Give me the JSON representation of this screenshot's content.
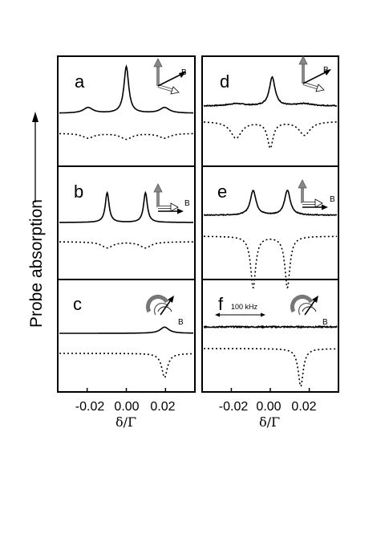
{
  "figure": {
    "y_label": "Probe absorption",
    "x_label": "δ/Γ",
    "x_ticks": [
      "-0.02",
      "0.00",
      "0.02"
    ],
    "scale_bar_label": "100 kHz",
    "field_label": "B"
  },
  "chart_data": [
    {
      "type": "line",
      "panel": "a",
      "column": "left",
      "xlim": [
        -0.035,
        0.035
      ],
      "series": [
        {
          "style": "solid",
          "peaks": [
            {
              "x": -0.02,
              "amp": 0.12,
              "w": 0.003
            },
            {
              "x": 0.0,
              "amp": 1.0,
              "w": 0.0015
            },
            {
              "x": 0.02,
              "amp": 0.12,
              "w": 0.003
            }
          ],
          "baseline": 0.0
        },
        {
          "style": "dotted",
          "peaks": [
            {
              "x": -0.02,
              "amp": -0.45,
              "w": 0.0035
            },
            {
              "x": 0.0,
              "amp": -0.55,
              "w": 0.0035
            },
            {
              "x": 0.02,
              "amp": -0.45,
              "w": 0.0035
            }
          ],
          "baseline": 0.0
        }
      ]
    },
    {
      "type": "line",
      "panel": "b",
      "column": "left",
      "xlim": [
        -0.035,
        0.035
      ],
      "series": [
        {
          "style": "solid",
          "peaks": [
            {
              "x": -0.01,
              "amp": 1.0,
              "w": 0.0012
            },
            {
              "x": 0.01,
              "amp": 1.0,
              "w": 0.0012
            }
          ],
          "baseline": 0.0
        },
        {
          "style": "dotted",
          "peaks": [
            {
              "x": -0.01,
              "amp": -0.5,
              "w": 0.0035
            },
            {
              "x": 0.01,
              "amp": -0.5,
              "w": 0.0035
            }
          ],
          "baseline": 0.0
        }
      ]
    },
    {
      "type": "line",
      "panel": "c",
      "column": "left",
      "xlim": [
        -0.035,
        0.035
      ],
      "series": [
        {
          "style": "solid",
          "peaks": [
            {
              "x": 0.02,
              "amp": 0.55,
              "w": 0.0028
            }
          ],
          "baseline": 0.0
        },
        {
          "style": "dotted",
          "peaks": [
            {
              "x": 0.02,
              "amp": -1.0,
              "w": 0.0018
            }
          ],
          "baseline": 0.0
        }
      ]
    },
    {
      "type": "line",
      "panel": "d",
      "column": "right",
      "xlim": [
        -0.035,
        0.035
      ],
      "series": [
        {
          "style": "solid",
          "peaks": [
            {
              "x": -0.018,
              "amp": 0.08,
              "w": 0.005
            },
            {
              "x": 0.001,
              "amp": 1.0,
              "w": 0.0018
            },
            {
              "x": 0.018,
              "amp": 0.08,
              "w": 0.005
            }
          ],
          "baseline": 0.0,
          "noise": 0.015
        },
        {
          "style": "dotted",
          "peaks": [
            {
              "x": -0.018,
              "amp": -0.55,
              "w": 0.0035
            },
            {
              "x": 0.0,
              "amp": -0.85,
              "w": 0.0018
            },
            {
              "x": 0.018,
              "amp": -0.45,
              "w": 0.0035
            }
          ],
          "baseline": 0.0
        }
      ]
    },
    {
      "type": "line",
      "panel": "e",
      "column": "right",
      "xlim": [
        -0.035,
        0.035
      ],
      "series": [
        {
          "style": "solid",
          "peaks": [
            {
              "x": -0.009,
              "amp": 1.0,
              "w": 0.0018
            },
            {
              "x": 0.009,
              "amp": 1.0,
              "w": 0.0018
            }
          ],
          "baseline": 0.0,
          "noise": 0.015
        },
        {
          "style": "dotted",
          "peaks": [
            {
              "x": -0.009,
              "amp": -1.0,
              "w": 0.0016
            },
            {
              "x": 0.009,
              "amp": -1.0,
              "w": 0.0016
            }
          ],
          "baseline": 0.0
        }
      ]
    },
    {
      "type": "line",
      "panel": "f",
      "column": "right",
      "xlim": [
        -0.035,
        0.035
      ],
      "series": [
        {
          "style": "solid",
          "peaks": [],
          "baseline": 0.0,
          "noise": 0.08
        },
        {
          "style": "dotted",
          "peaks": [
            {
              "x": 0.016,
              "amp": -1.0,
              "w": 0.0016
            }
          ],
          "baseline": 0.0
        }
      ]
    }
  ]
}
